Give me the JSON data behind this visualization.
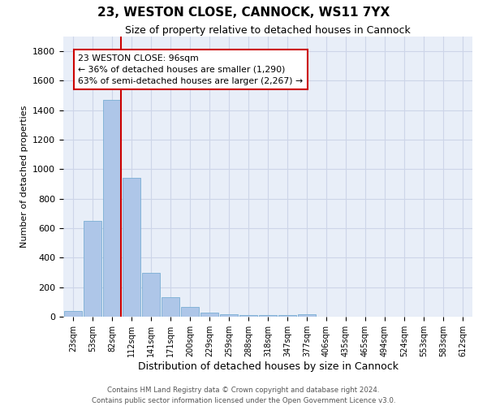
{
  "title1": "23, WESTON CLOSE, CANNOCK, WS11 7YX",
  "title2": "Size of property relative to detached houses in Cannock",
  "xlabel": "Distribution of detached houses by size in Cannock",
  "ylabel": "Number of detached properties",
  "bar_color": "#aec6e8",
  "bar_edge_color": "#7aafd4",
  "categories": [
    "23sqm",
    "53sqm",
    "82sqm",
    "112sqm",
    "141sqm",
    "171sqm",
    "200sqm",
    "229sqm",
    "259sqm",
    "288sqm",
    "318sqm",
    "347sqm",
    "377sqm",
    "406sqm",
    "435sqm",
    "465sqm",
    "494sqm",
    "524sqm",
    "553sqm",
    "583sqm",
    "612sqm"
  ],
  "values": [
    40,
    650,
    1470,
    940,
    295,
    130,
    65,
    25,
    15,
    10,
    10,
    10,
    15,
    0,
    0,
    0,
    0,
    0,
    0,
    0,
    0
  ],
  "vline_color": "#cc0000",
  "annotation_text": "23 WESTON CLOSE: 96sqm\n← 36% of detached houses are smaller (1,290)\n63% of semi-detached houses are larger (2,267) →",
  "annotation_box_color": "#ffffff",
  "annotation_box_edge": "#cc0000",
  "ylim": [
    0,
    1900
  ],
  "yticks": [
    0,
    200,
    400,
    600,
    800,
    1000,
    1200,
    1400,
    1600,
    1800
  ],
  "grid_color": "#cdd5e8",
  "background_color": "#e8eef8",
  "footer1": "Contains HM Land Registry data © Crown copyright and database right 2024.",
  "footer2": "Contains public sector information licensed under the Open Government Licence v3.0."
}
